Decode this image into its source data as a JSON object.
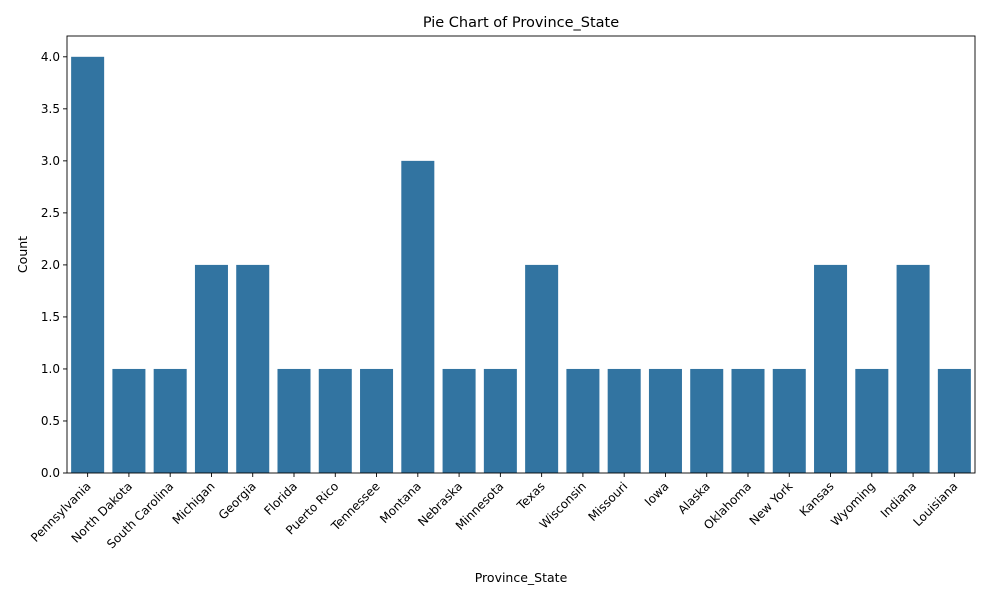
{
  "chart_data": {
    "type": "bar",
    "title": "Pie Chart of Province_State",
    "xlabel": "Province_State",
    "ylabel": "Count",
    "ylim": [
      0,
      4.2
    ],
    "yticks": [
      0.0,
      0.5,
      1.0,
      1.5,
      2.0,
      2.5,
      3.0,
      3.5,
      4.0
    ],
    "ytick_labels": [
      "0.0",
      "0.5",
      "1.0",
      "1.5",
      "2.0",
      "2.5",
      "3.0",
      "3.5",
      "4.0"
    ],
    "grid": false,
    "bar_color": "#3274a1",
    "categories": [
      "Pennsylvania",
      "North Dakota",
      "South Carolina",
      "Michigan",
      "Georgia",
      "Florida",
      "Puerto Rico",
      "Tennessee",
      "Montana",
      "Nebraska",
      "Minnesota",
      "Texas",
      "Wisconsin",
      "Missouri",
      "Iowa",
      "Alaska",
      "Oklahoma",
      "New York",
      "Kansas",
      "Wyoming",
      "Indiana",
      "Louisiana"
    ],
    "values": [
      4,
      1,
      1,
      2,
      2,
      1,
      1,
      1,
      3,
      1,
      1,
      2,
      1,
      1,
      1,
      1,
      1,
      1,
      2,
      1,
      2,
      1
    ]
  }
}
